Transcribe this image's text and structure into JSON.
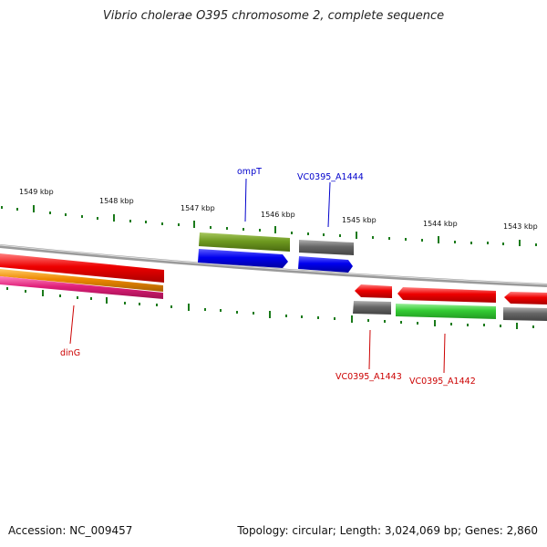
{
  "title": "Vibrio cholerae O395 chromosome 2, complete sequence",
  "footer": {
    "accession": "Accession: NC_009457",
    "summary": "Topology: circular; Length: 3,024,069 bp; Genes: 2,860"
  },
  "scale_labels": [
    "1549 kbp",
    "1548 kbp",
    "1547 kbp",
    "1546 kbp",
    "1545 kbp",
    "1544 kbp",
    "1543 kbp"
  ],
  "gene_labels": {
    "ompT": "ompT",
    "vc0395_a1444": "VC0395_A1444",
    "dinG": "dinG",
    "vc0395_a1443": "VC0395_A1443",
    "vc0395_a1442": "VC0395_A1442"
  },
  "colors": {
    "forward_label": "#0000cc",
    "reverse_label": "#cc0000",
    "tick": "#1a7a1a",
    "backbone": "#808080",
    "red": "#ee0000",
    "blue": "#0000ee",
    "olive": "#6e9a20",
    "gray": "#666666",
    "green": "#33cc33",
    "orange": "#ee8800",
    "magenta": "#e0207a"
  }
}
